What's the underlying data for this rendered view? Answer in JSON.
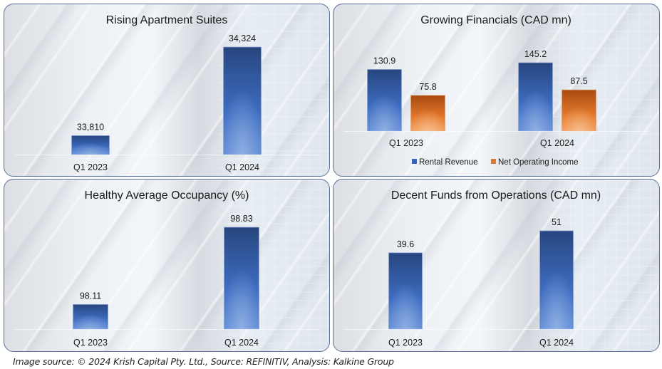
{
  "colors": {
    "blue_dark": "#1f3d7a",
    "blue_light": "#5a86d6",
    "orange_dark": "#b8520f",
    "orange_light": "#f29a55"
  },
  "footer": "Image source: © 2024 Krish Capital Pty. Ltd., Source: REFINITIV, Analysis: Kalkine Group",
  "chart_data": [
    {
      "type": "bar",
      "title": "Rising Apartment Suites",
      "categories": [
        "Q1 2023",
        "Q1 2024"
      ],
      "series": [
        {
          "name": "Apartment Suites",
          "values": [
            33810,
            34324
          ],
          "labels": [
            "33,810",
            "34,324"
          ],
          "color": "blue"
        }
      ],
      "ylim": [
        33700,
        34340
      ],
      "legend": "none",
      "grid": false,
      "xlabel": "",
      "ylabel": ""
    },
    {
      "type": "bar",
      "title": "Growing Financials (CAD mn)",
      "categories": [
        "Q1 2023",
        "Q1 2024"
      ],
      "series": [
        {
          "name": "Rental Revenue",
          "values": [
            130.9,
            145.2
          ],
          "labels": [
            "130.9",
            "145.2"
          ],
          "color": "blue"
        },
        {
          "name": "Net Operating Income",
          "values": [
            75.8,
            87.5
          ],
          "labels": [
            "75.8",
            "87.5"
          ],
          "color": "orange"
        }
      ],
      "ylim": [
        0,
        160
      ],
      "legend": "bottom",
      "grid": false,
      "xlabel": "",
      "ylabel": ""
    },
    {
      "type": "bar",
      "title": "Healthy Average Occupancy (%)",
      "categories": [
        "Q1 2023",
        "Q1 2024"
      ],
      "series": [
        {
          "name": "Average Occupancy",
          "values": [
            98.11,
            98.83
          ],
          "labels": [
            "98.11",
            "98.83"
          ],
          "color": "blue"
        }
      ],
      "ylim": [
        97.88,
        98.85
      ],
      "legend": "none",
      "grid": false,
      "xlabel": "",
      "ylabel": ""
    },
    {
      "type": "bar",
      "title": "Decent Funds from Operations (CAD mn)",
      "categories": [
        "Q1 2023",
        "Q1 2024"
      ],
      "series": [
        {
          "name": "Funds from Operations",
          "values": [
            39.6,
            51
          ],
          "labels": [
            "39.6",
            "51"
          ],
          "color": "blue"
        }
      ],
      "ylim": [
        0,
        53
      ],
      "legend": "none",
      "grid": false,
      "xlabel": "",
      "ylabel": ""
    }
  ]
}
